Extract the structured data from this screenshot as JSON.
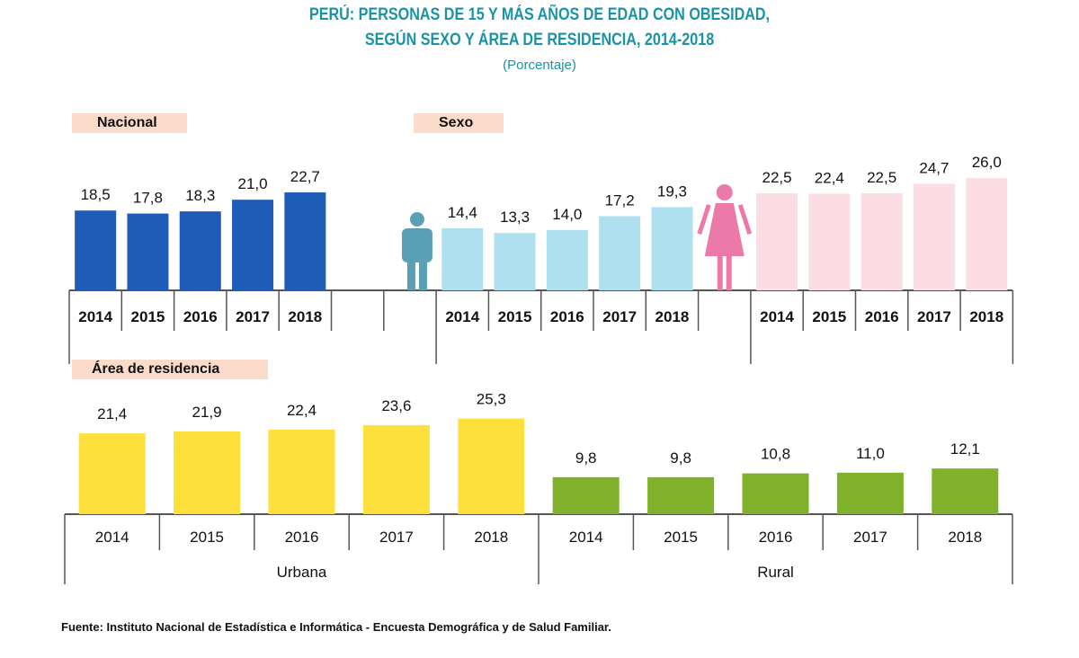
{
  "title_line1": "PERÚ: PERSONAS DE 15 Y MÁS AÑOS DE EDAD CON OBESIDAD,",
  "title_line2": "SEGÚN SEXO Y ÁREA DE RESIDENCIA, 2014-2018",
  "subtitle": "(Porcentaje)",
  "source": "Fuente: Instituto Nacional de Estadística e Informática - Encuesta Demográfica y de Salud Familiar.",
  "chart_data": [
    {
      "type": "bar",
      "panel": "Nacional",
      "categories": [
        "2014",
        "2015",
        "2016",
        "2017",
        "2018"
      ],
      "series": [
        {
          "values": [
            18.5,
            17.8,
            18.3,
            21.0,
            22.7
          ],
          "color": "#1f5cb8"
        }
      ]
    },
    {
      "type": "bar",
      "panel": "Sexo",
      "categories": [
        "2014",
        "2015",
        "2016",
        "2017",
        "2018"
      ],
      "series": [
        {
          "icon": "man-icon",
          "values": [
            14.4,
            13.3,
            14.0,
            17.2,
            19.3
          ],
          "color": "#aee0f0"
        },
        {
          "icon": "woman-icon",
          "values": [
            22.5,
            22.4,
            22.5,
            24.7,
            26.0
          ],
          "color": "#fcdde3"
        }
      ]
    },
    {
      "type": "bar",
      "panel": "Área de residencia",
      "categories": [
        "2014",
        "2015",
        "2016",
        "2017",
        "2018"
      ],
      "series": [
        {
          "name": "Urbana",
          "values": [
            21.4,
            21.9,
            22.4,
            23.6,
            25.3
          ],
          "color": "#fde03c"
        },
        {
          "name": "Rural",
          "values": [
            9.8,
            9.8,
            10.8,
            11.0,
            12.1
          ],
          "color": "#7fb22a"
        }
      ]
    }
  ]
}
